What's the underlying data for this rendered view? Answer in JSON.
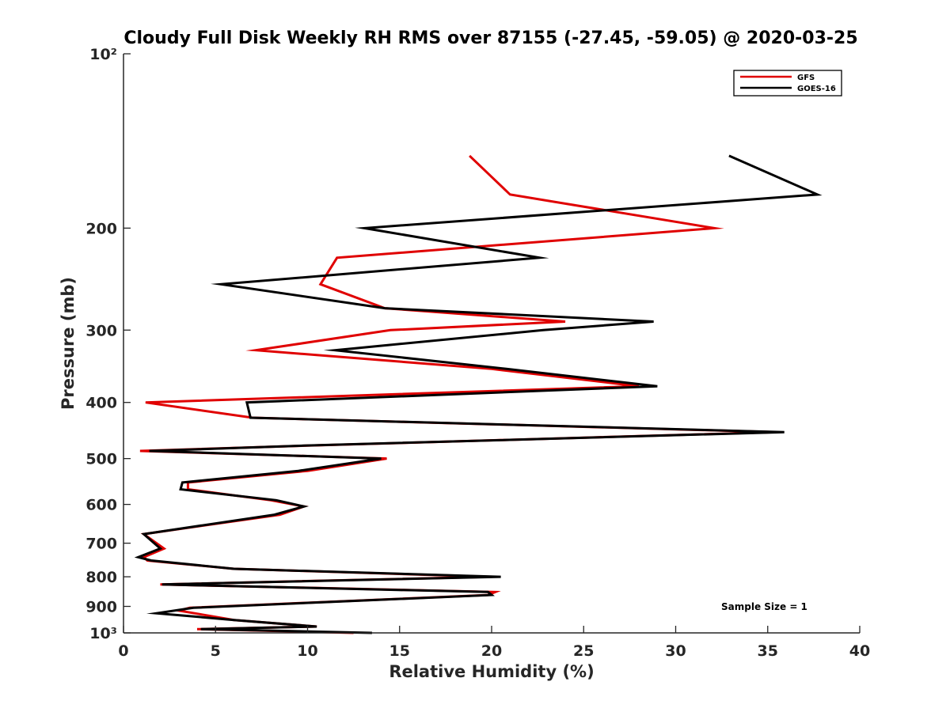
{
  "chart_data": {
    "type": "line",
    "title": "Cloudy Full Disk Weekly RH RMS over 87155 (-27.45, -59.05) @ 2020-03-25",
    "xlabel": "Relative Humidity (%)",
    "ylabel": "Pressure (mb)",
    "xlim": [
      0,
      40
    ],
    "ylim": [
      100,
      1000
    ],
    "yscale": "log",
    "y_reversed": true,
    "x_ticks": [
      0,
      5,
      10,
      15,
      20,
      25,
      30,
      35,
      40
    ],
    "x_tick_labels": [
      "0",
      "5",
      "10",
      "15",
      "20",
      "25",
      "30",
      "35",
      "40"
    ],
    "y_ticks": [
      100,
      200,
      300,
      400,
      500,
      600,
      700,
      800,
      900,
      1000
    ],
    "y_tick_labels": [
      "10²",
      "200",
      "300",
      "400",
      "500",
      "600",
      "700",
      "800",
      "900",
      "10³"
    ],
    "legend_position": "top-right",
    "note": "Sample Size = 1",
    "series": [
      {
        "name": "GFS",
        "color": "#e00000",
        "points": [
          [
            18.8,
            150
          ],
          [
            21.0,
            175
          ],
          [
            32.1,
            200
          ],
          [
            11.6,
            225
          ],
          [
            10.7,
            250
          ],
          [
            14.2,
            275
          ],
          [
            24.0,
            290
          ],
          [
            14.5,
            300
          ],
          [
            7.2,
            325
          ],
          [
            20.0,
            350
          ],
          [
            28.0,
            375
          ],
          [
            1.2,
            400
          ],
          [
            7.0,
            425
          ],
          [
            35.5,
            450
          ],
          [
            10.0,
            475
          ],
          [
            0.9,
            485
          ],
          [
            14.3,
            500
          ],
          [
            10.0,
            525
          ],
          [
            3.5,
            550
          ],
          [
            3.5,
            565
          ],
          [
            8.0,
            590
          ],
          [
            9.8,
            605
          ],
          [
            8.5,
            625
          ],
          [
            1.1,
            675
          ],
          [
            2.2,
            715
          ],
          [
            1.1,
            740
          ],
          [
            1.3,
            750
          ],
          [
            6.0,
            775
          ],
          [
            20.0,
            800
          ],
          [
            2.0,
            825
          ],
          [
            20.2,
            850
          ],
          [
            19.8,
            860
          ],
          [
            3.6,
            905
          ],
          [
            3.0,
            915
          ],
          [
            6.0,
            950
          ],
          [
            10.5,
            975
          ],
          [
            4.0,
            985
          ],
          [
            12.5,
            1000
          ]
        ]
      },
      {
        "name": "GOES-16",
        "color": "#000000",
        "points": [
          [
            32.9,
            150
          ],
          [
            37.7,
            175
          ],
          [
            13.1,
            200
          ],
          [
            22.6,
            225
          ],
          [
            5.3,
            250
          ],
          [
            14.2,
            275
          ],
          [
            28.8,
            290
          ],
          [
            22.8,
            300
          ],
          [
            11.5,
            325
          ],
          [
            20.8,
            350
          ],
          [
            29.0,
            375
          ],
          [
            6.7,
            400
          ],
          [
            6.9,
            425
          ],
          [
            35.9,
            450
          ],
          [
            9.8,
            475
          ],
          [
            1.4,
            485
          ],
          [
            14.0,
            500
          ],
          [
            9.5,
            525
          ],
          [
            3.2,
            550
          ],
          [
            3.1,
            565
          ],
          [
            8.3,
            590
          ],
          [
            9.8,
            605
          ],
          [
            8.2,
            625
          ],
          [
            1.1,
            675
          ],
          [
            2.0,
            715
          ],
          [
            0.8,
            740
          ],
          [
            1.5,
            750
          ],
          [
            6.0,
            775
          ],
          [
            20.5,
            800
          ],
          [
            2.1,
            825
          ],
          [
            19.8,
            850
          ],
          [
            20.0,
            860
          ],
          [
            3.8,
            905
          ],
          [
            1.8,
            925
          ],
          [
            6.0,
            950
          ],
          [
            10.5,
            975
          ],
          [
            4.2,
            985
          ],
          [
            13.5,
            1000
          ]
        ]
      }
    ]
  }
}
